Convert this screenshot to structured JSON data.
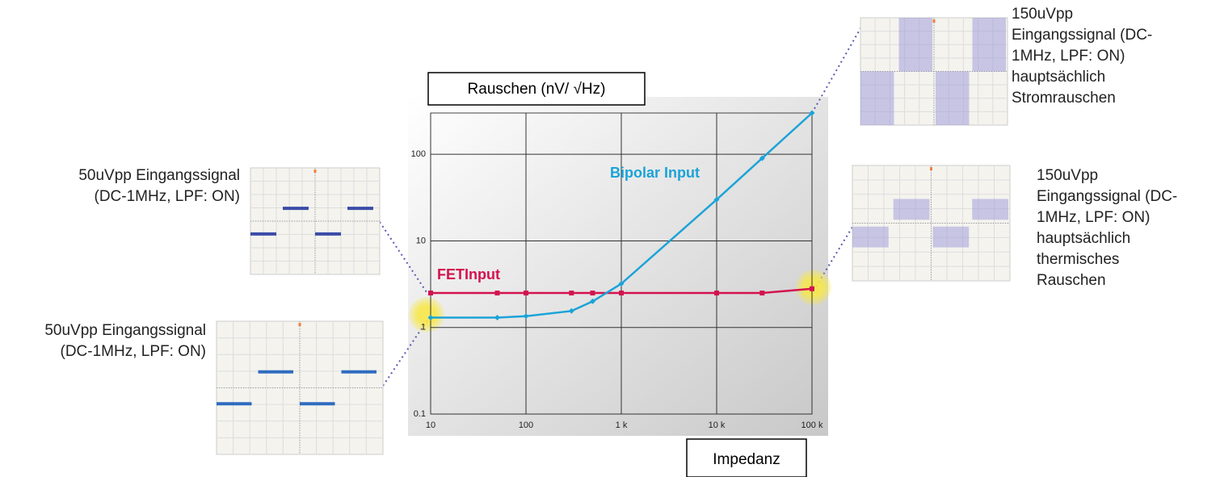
{
  "chart_data": {
    "type": "line",
    "y_label": "Rauschen (nV/ √Hz)",
    "x_label": "Impedanz",
    "x": [
      10,
      50,
      100,
      300,
      500,
      1000,
      10000,
      30000,
      100000
    ],
    "series": [
      {
        "name": "FETInput",
        "color": "#d3124e",
        "values": [
          2.5,
          2.5,
          2.5,
          2.5,
          2.5,
          2.5,
          2.5,
          2.5,
          2.8
        ]
      },
      {
        "name": "Bipolar Input",
        "color": "#1ba3d8",
        "values": [
          1.3,
          1.3,
          1.35,
          1.55,
          2,
          3.2,
          30,
          90,
          300
        ]
      }
    ],
    "xscale": "log",
    "yscale": "log",
    "xlim": [
      10,
      100000
    ],
    "ylim": [
      0.1,
      300
    ],
    "xticks": [
      10,
      100,
      {
        "value": 1000,
        "label": "1 k"
      },
      {
        "value": 10000,
        "label": "10 k"
      },
      {
        "value": 100000,
        "label": "100 k"
      }
    ],
    "yticks": [
      0.1,
      1,
      10,
      100
    ],
    "grid": true,
    "annotations": [
      [
        "150uVpp",
        "Eingangssignal (DC-",
        "1MHz, LPF: ON)",
        "hauptsächlich",
        "Stromrauschen"
      ],
      [
        "150uVpp",
        "Eingangssignal (DC-",
        "1MHz, LPF: ON)",
        "hauptsächlich",
        "thermisches",
        "Rauschen"
      ],
      [
        "50uVpp Eingangssignal",
        "(DC-1MHz, LPF: ON)"
      ],
      [
        "50uVpp Eingangssignal",
        "(DC-1MHz, LPF: ON)"
      ]
    ]
  }
}
